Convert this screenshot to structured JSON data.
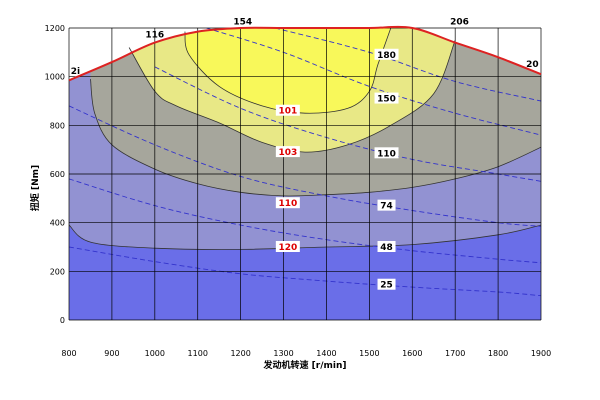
{
  "chart_data": {
    "type": "contour",
    "xlabel": "发动机转速 [r/min]",
    "ylabel": "扭矩 [Nm]",
    "xlim": [
      800,
      1900
    ],
    "ylim": [
      0,
      1200
    ],
    "x_ticks": [
      800,
      900,
      1000,
      1100,
      1200,
      1300,
      1400,
      1500,
      1600,
      1700,
      1800,
      1900
    ],
    "y_ticks": [
      0,
      200,
      400,
      600,
      800,
      1000,
      1200
    ],
    "grid": true,
    "colors": {
      "c100": "#6a6ee8",
      "c110": "#9292d2",
      "c120": "#a6a69c",
      "c103": "#e8e886",
      "c101": "#f8f85a",
      "max_torque_line": "#dd2222",
      "power_line": "#3333cc",
      "bsfc_label": "#dd0000",
      "grid": "#000000"
    },
    "max_torque_curve": [
      [
        800,
        985
      ],
      [
        900,
        1060
      ],
      [
        1000,
        1140
      ],
      [
        1100,
        1185
      ],
      [
        1200,
        1200
      ],
      [
        1300,
        1200
      ],
      [
        1400,
        1200
      ],
      [
        1500,
        1200
      ],
      [
        1600,
        1200
      ],
      [
        1700,
        1140
      ],
      [
        1800,
        1080
      ],
      [
        1900,
        1010
      ]
    ],
    "bsfc_contours": [
      {
        "label": "120",
        "points": [
          [
            800,
            390
          ],
          [
            850,
            320
          ],
          [
            1000,
            295
          ],
          [
            1200,
            290
          ],
          [
            1400,
            300
          ],
          [
            1600,
            310
          ],
          [
            1800,
            350
          ],
          [
            1900,
            390
          ]
        ]
      },
      {
        "label": "110",
        "points": [
          [
            850,
            990
          ],
          [
            860,
            850
          ],
          [
            900,
            720
          ],
          [
            1000,
            620
          ],
          [
            1100,
            560
          ],
          [
            1200,
            525
          ],
          [
            1300,
            510
          ],
          [
            1400,
            515
          ],
          [
            1500,
            525
          ],
          [
            1600,
            545
          ],
          [
            1700,
            580
          ],
          [
            1800,
            630
          ],
          [
            1900,
            710
          ]
        ]
      },
      {
        "label": "103",
        "points": [
          [
            940,
            1120
          ],
          [
            1000,
            940
          ],
          [
            1050,
            880
          ],
          [
            1150,
            810
          ],
          [
            1250,
            730
          ],
          [
            1350,
            690
          ],
          [
            1450,
            720
          ],
          [
            1550,
            800
          ],
          [
            1650,
            930
          ],
          [
            1700,
            1150
          ]
        ]
      },
      {
        "label": "101",
        "points": [
          [
            1070,
            1185
          ],
          [
            1080,
            1090
          ],
          [
            1150,
            960
          ],
          [
            1250,
            880
          ],
          [
            1350,
            850
          ],
          [
            1450,
            870
          ],
          [
            1500,
            940
          ],
          [
            1520,
            1050
          ],
          [
            1550,
            1200
          ]
        ]
      }
    ],
    "bsfc_label_positions": [
      {
        "label": "101",
        "x": 1310,
        "y": 860
      },
      {
        "label": "103",
        "x": 1310,
        "y": 690
      },
      {
        "label": "110",
        "x": 1310,
        "y": 480
      },
      {
        "label": "120",
        "x": 1310,
        "y": 300
      }
    ],
    "power_curves": [
      {
        "label": "25",
        "points": [
          [
            800,
            300
          ],
          [
            1000,
            240
          ],
          [
            1200,
            190
          ],
          [
            1400,
            160
          ],
          [
            1600,
            135
          ],
          [
            1800,
            115
          ],
          [
            1900,
            100
          ]
        ]
      },
      {
        "label": "48",
        "points": [
          [
            800,
            580
          ],
          [
            1000,
            470
          ],
          [
            1200,
            390
          ],
          [
            1400,
            330
          ],
          [
            1600,
            285
          ],
          [
            1800,
            250
          ],
          [
            1900,
            235
          ]
        ]
      },
      {
        "label": "74",
        "points": [
          [
            800,
            880
          ],
          [
            1000,
            720
          ],
          [
            1200,
            590
          ],
          [
            1400,
            510
          ],
          [
            1600,
            450
          ],
          [
            1800,
            400
          ],
          [
            1900,
            385
          ]
        ]
      },
      {
        "label": "110",
        "points": [
          [
            1000,
            1040
          ],
          [
            1200,
            870
          ],
          [
            1400,
            750
          ],
          [
            1600,
            660
          ],
          [
            1800,
            600
          ],
          [
            1900,
            570
          ]
        ]
      },
      {
        "label": "150",
        "points": [
          [
            1120,
            1200
          ],
          [
            1300,
            1100
          ],
          [
            1500,
            960
          ],
          [
            1700,
            850
          ],
          [
            1900,
            760
          ]
        ]
      },
      {
        "label": "180",
        "points": [
          [
            1280,
            1200
          ],
          [
            1500,
            1100
          ],
          [
            1700,
            980
          ],
          [
            1900,
            900
          ]
        ]
      }
    ],
    "power_label_positions": [
      {
        "label": "25",
        "x": 1540,
        "y": 145
      },
      {
        "label": "48",
        "x": 1540,
        "y": 300
      },
      {
        "label": "74",
        "x": 1540,
        "y": 470
      },
      {
        "label": "110",
        "x": 1540,
        "y": 685
      },
      {
        "label": "150",
        "x": 1540,
        "y": 910
      },
      {
        "label": "180",
        "x": 1540,
        "y": 1090
      }
    ],
    "curve_top_labels": [
      {
        "label": "2i",
        "x": 815,
        "y": 1010
      },
      {
        "label": "116",
        "x": 1000,
        "y": 1160
      },
      {
        "label": "154",
        "x": 1205,
        "y": 1215
      },
      {
        "label": "206",
        "x": 1710,
        "y": 1215
      },
      {
        "label": "20",
        "x": 1880,
        "y": 1040
      }
    ]
  }
}
